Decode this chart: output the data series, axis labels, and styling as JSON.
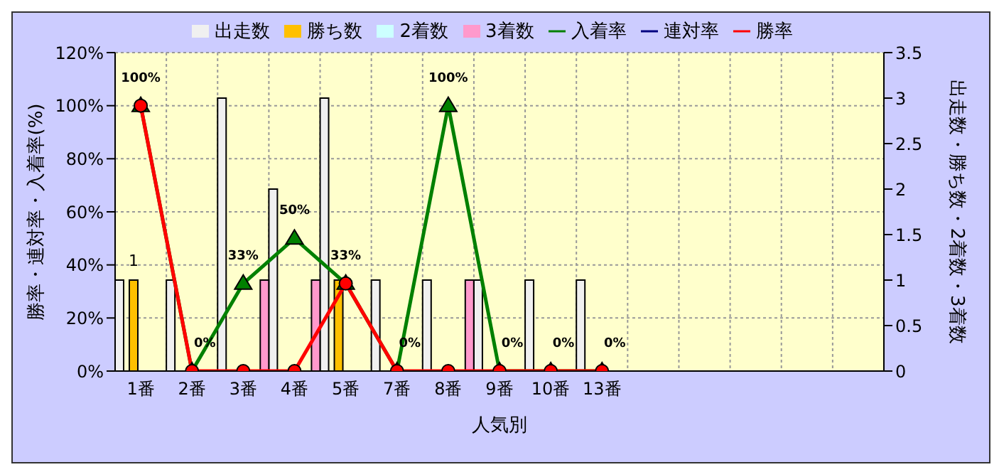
{
  "chart_data": {
    "type": "bar",
    "xlabel": "人気別",
    "ylabel": "勝率・連対率・入着率(%)",
    "y2label": "出走数・勝ち数・2着数・3着数",
    "categories": [
      "1番",
      "2番",
      "3番",
      "4番",
      "5番",
      "7番",
      "8番",
      "9番",
      "10番",
      "13番",
      null,
      null,
      null,
      null,
      null
    ],
    "series": [
      {
        "name": "出走数",
        "axis": "y2",
        "color": "#f0f0f0",
        "values": [
          1,
          1,
          3,
          2,
          3,
          1,
          1,
          1,
          1,
          1,
          null,
          null,
          null,
          null,
          null
        ]
      },
      {
        "name": "勝ち数",
        "axis": "y2",
        "color": "#ffc000",
        "values": [
          1,
          0,
          0,
          0,
          1,
          0,
          0,
          0,
          0,
          0,
          null,
          null,
          null,
          null,
          null
        ],
        "value_labels": [
          "1",
          null,
          null,
          null,
          null,
          null,
          null,
          null,
          null,
          null,
          null,
          null,
          null,
          null,
          null
        ]
      },
      {
        "name": "2着数",
        "axis": "y2",
        "color": "#ccffff",
        "values": [
          0,
          0,
          0,
          0,
          0,
          0,
          0,
          0,
          0,
          0,
          null,
          null,
          null,
          null,
          null
        ]
      },
      {
        "name": "3着数",
        "axis": "y2",
        "color": "#ff99cc",
        "values": [
          0,
          0,
          1,
          1,
          0,
          0,
          1,
          0,
          0,
          0,
          null,
          null,
          null,
          null,
          null
        ]
      },
      {
        "name": "入着率",
        "type": "line",
        "marker": "triangle",
        "color": "#008000",
        "values": [
          100,
          0,
          33,
          50,
          33,
          0,
          100,
          0,
          0,
          0,
          null,
          null,
          null,
          null,
          null
        ],
        "value_labels": [
          "100%",
          "0%",
          "33%",
          "50%",
          "33%",
          "0%",
          "100%",
          "0%",
          "0%",
          "0%",
          null,
          null,
          null,
          null,
          null
        ]
      },
      {
        "name": "連対率",
        "type": "line",
        "marker": "diamond",
        "color": "#000080",
        "values": [
          null,
          null,
          null,
          null,
          null,
          null,
          null,
          null,
          null,
          null,
          null,
          null,
          null,
          null,
          null
        ]
      },
      {
        "name": "勝率",
        "type": "line",
        "marker": "circle",
        "color": "#ff0000",
        "values": [
          100,
          0,
          0,
          0,
          33,
          0,
          0,
          0,
          0,
          0,
          null,
          null,
          null,
          null,
          null
        ]
      }
    ],
    "ylim": [
      0,
      120
    ],
    "yticks": [
      {
        "value": 0,
        "label": "0%"
      },
      {
        "value": 20,
        "label": "20%"
      },
      {
        "value": 40,
        "label": "40%"
      },
      {
        "value": 60,
        "label": "60%"
      },
      {
        "value": 80,
        "label": "80%"
      },
      {
        "value": 100,
        "label": "100%"
      },
      {
        "value": 120,
        "label": "120%"
      }
    ],
    "y2lim": [
      0,
      3.5
    ],
    "y2ticks": [
      0,
      0.5,
      1,
      1.5,
      2,
      2.5,
      3,
      3.5
    ],
    "grid": true,
    "legend": "top"
  }
}
